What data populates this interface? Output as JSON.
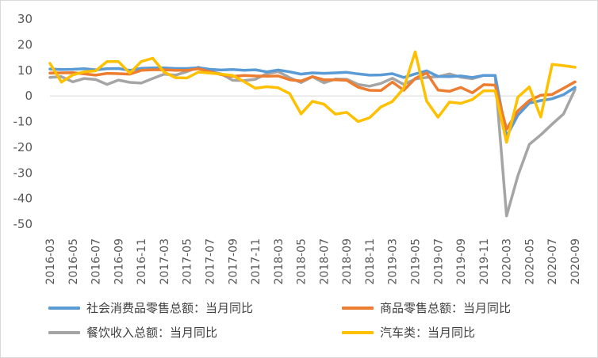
{
  "chart_data": {
    "type": "line",
    "title": "",
    "xlabel": "",
    "ylabel": "",
    "ylim": [
      -50,
      30
    ],
    "yticks": [
      30,
      20,
      10,
      0,
      -10,
      -20,
      -30,
      -40,
      -50
    ],
    "grid": false,
    "legend_position": "bottom",
    "x": [
      "2016-03",
      "2016-04",
      "2016-05",
      "2016-06",
      "2016-07",
      "2016-08",
      "2016-09",
      "2016-10",
      "2016-11",
      "2016-12",
      "2017-03",
      "2017-04",
      "2017-05",
      "2017-06",
      "2017-07",
      "2017-08",
      "2017-09",
      "2017-10",
      "2017-11",
      "2017-12",
      "2018-03",
      "2018-04",
      "2018-05",
      "2018-06",
      "2018-07",
      "2018-08",
      "2018-09",
      "2018-10",
      "2018-11",
      "2018-12",
      "2019-03",
      "2019-04",
      "2019-05",
      "2019-06",
      "2019-07",
      "2019-08",
      "2019-09",
      "2019-10",
      "2019-11",
      "2019-12",
      "2020-03",
      "2020-04",
      "2020-05",
      "2020-06",
      "2020-07",
      "2020-08",
      "2020-09"
    ],
    "xtick_labels": [
      "2016-03",
      "2016-05",
      "2016-07",
      "2016-09",
      "2016-11",
      "2017-03",
      "2017-05",
      "2017-07",
      "2017-09",
      "2017-11",
      "2018-03",
      "2018-05",
      "2018-07",
      "2018-09",
      "2018-11",
      "2019-03",
      "2019-05",
      "2019-07",
      "2019-09",
      "2019-11",
      "2020-03",
      "2020-05",
      "2020-07",
      "2020-09"
    ],
    "series": [
      {
        "name": "社会消费品零售总额：当月同比",
        "color": "#5B9BD5",
        "values": [
          10.5,
          10.3,
          10.4,
          10.6,
          10.2,
          10.6,
          10.7,
          10.0,
          10.8,
          10.9,
          10.9,
          10.7,
          10.7,
          11.0,
          10.4,
          10.1,
          10.3,
          10.0,
          10.2,
          9.4,
          10.1,
          9.4,
          8.5,
          9.0,
          8.8,
          9.0,
          9.2,
          8.6,
          8.1,
          8.2,
          8.7,
          7.2,
          8.6,
          9.8,
          7.6,
          7.5,
          7.8,
          7.2,
          8.0,
          8.0,
          -15.8,
          -7.5,
          -2.8,
          -1.8,
          -1.1,
          0.5,
          3.3
        ]
      },
      {
        "name": "商品零售总额：当月同比",
        "color": "#ED7D31",
        "values": [
          8.9,
          9.0,
          9.1,
          8.6,
          8.1,
          8.8,
          8.7,
          8.5,
          10.0,
          10.2,
          10.2,
          10.0,
          10.0,
          10.6,
          9.5,
          8.3,
          7.6,
          8.0,
          7.8,
          7.7,
          7.8,
          6.3,
          5.8,
          7.5,
          6.3,
          6.3,
          6.1,
          3.4,
          2.2,
          2.1,
          5.4,
          2.2,
          6.8,
          9.0,
          2.3,
          1.8,
          3.3,
          1.2,
          4.4,
          4.2,
          -13.0,
          -5.8,
          -1.8,
          0.3,
          0.6,
          3.0,
          5.5
        ]
      },
      {
        "name": "餐饮收入总额：当月同比",
        "color": "#A5A5A5",
        "values": [
          7.2,
          7.5,
          5.5,
          6.8,
          6.4,
          4.5,
          6.2,
          5.3,
          5.0,
          6.8,
          8.5,
          8.1,
          9.5,
          11.2,
          9.6,
          8.6,
          6.1,
          6.0,
          6.5,
          8.7,
          9.5,
          7.1,
          5.2,
          7.5,
          5.1,
          6.6,
          6.5,
          4.5,
          3.8,
          4.9,
          6.9,
          4.5,
          6.6,
          7.2,
          7.5,
          8.6,
          7.3,
          6.7,
          8.0,
          8.0,
          -46.8,
          -31.1,
          -18.9,
          -15.2,
          -11.0,
          -7.0,
          2.5
        ]
      },
      {
        "name": "汽车类：当月同比",
        "color": "#FFC000",
        "values": [
          12.7,
          5.4,
          8.2,
          9.4,
          9.8,
          13.4,
          13.4,
          8.9,
          13.4,
          14.7,
          9.3,
          7.1,
          7.0,
          9.3,
          8.9,
          8.5,
          8.0,
          5.6,
          3.0,
          3.6,
          3.2,
          0.9,
          -7.0,
          -2.1,
          -3.2,
          -7.1,
          -6.4,
          -10.0,
          -8.5,
          -4.3,
          -2.2,
          3.0,
          17.2,
          -2.0,
          -8.3,
          -2.4,
          -2.9,
          -1.4,
          2.0,
          2.0,
          -18.1,
          -0.5,
          3.5,
          -8.2,
          12.3,
          11.8,
          11.2
        ]
      }
    ]
  }
}
